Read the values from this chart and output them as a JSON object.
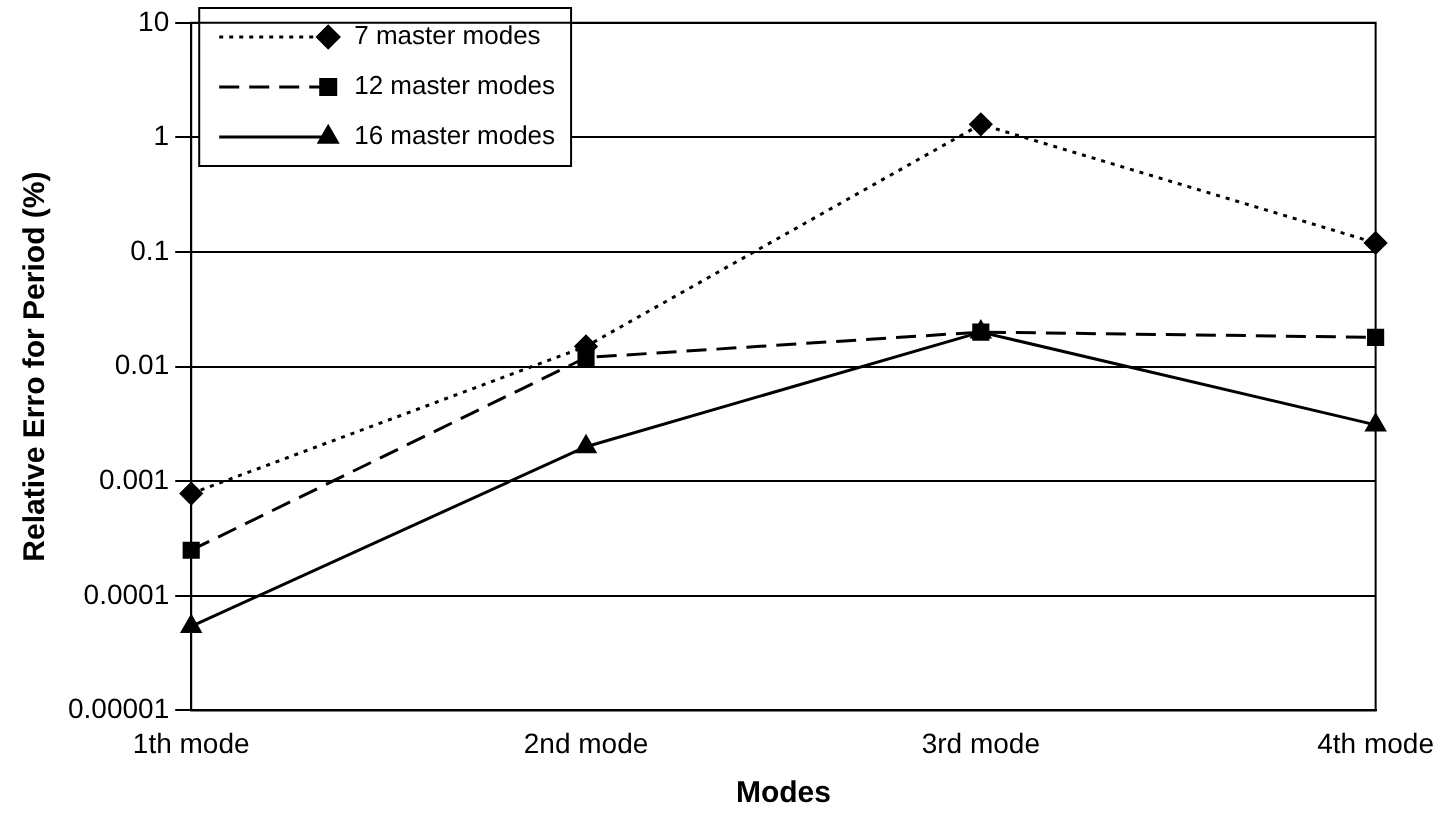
{
  "chart_data": {
    "type": "line",
    "xlabel": "Modes",
    "ylabel": "Relative Erro for Period (%)",
    "categories": [
      "1th mode",
      "2nd mode",
      "3rd mode",
      "4th mode"
    ],
    "series": [
      {
        "name": "7 master modes",
        "color": "#000000",
        "marker": "diamond",
        "line_style": "dotted",
        "values": [
          0.00078,
          0.015,
          1.3,
          0.12
        ]
      },
      {
        "name": "12 master modes",
        "color": "#000000",
        "marker": "square",
        "line_style": "dashed",
        "values": [
          0.00025,
          0.012,
          0.02,
          0.018
        ]
      },
      {
        "name": "16 master modes",
        "color": "#000000",
        "marker": "triangle",
        "line_style": "solid",
        "values": [
          5.4e-05,
          0.002,
          0.02,
          0.0031
        ]
      }
    ],
    "log": "y",
    "ylim": [
      1e-05,
      10
    ],
    "yticks": [
      {
        "value": 1e-05,
        "label": "0.00001"
      },
      0.0001,
      0.001,
      0.01,
      0.1,
      1,
      10
    ],
    "grid": "y",
    "legend": "top left"
  }
}
